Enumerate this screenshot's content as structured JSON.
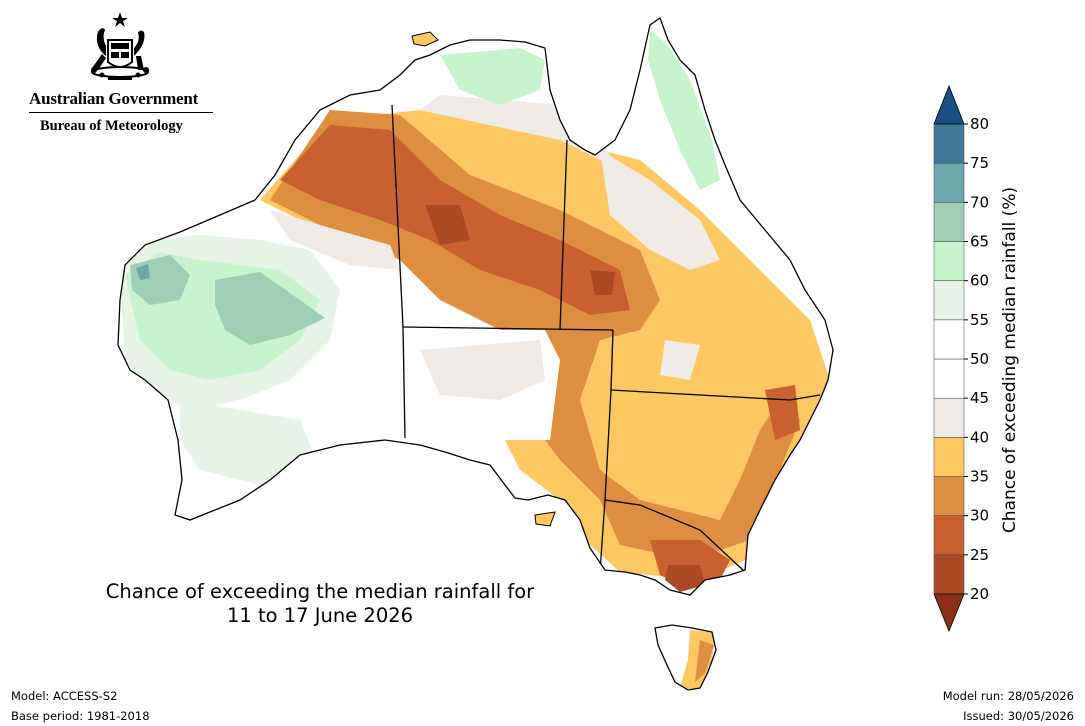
{
  "header": {
    "government": "Australian Government",
    "agency": "Bureau of Meteorology",
    "logo_icon": "coat-of-arms-icon"
  },
  "map": {
    "title_line1": "Chance of exceeding the median rainfall for",
    "title_line2": "11 to 17 June 2026",
    "region": "Australia"
  },
  "colorbar": {
    "label": "Chance of exceeding median rainfall (%)",
    "ticks": [
      "20",
      "25",
      "30",
      "35",
      "40",
      "45",
      "50",
      "55",
      "60",
      "65",
      "70",
      "75",
      "80"
    ],
    "bins": [
      {
        "range": "20-25",
        "color": "#a94a25"
      },
      {
        "range": "25-30",
        "color": "#c8602f"
      },
      {
        "range": "30-35",
        "color": "#de8e41"
      },
      {
        "range": "35-40",
        "color": "#fdc762"
      },
      {
        "range": "40-45",
        "color": "#f0ebe6"
      },
      {
        "range": "45-50",
        "color": "#ffffff"
      },
      {
        "range": "50-55",
        "color": "#ffffff"
      },
      {
        "range": "55-60",
        "color": "#e8f4e8"
      },
      {
        "range": "60-65",
        "color": "#c7f4cc"
      },
      {
        "range": "65-70",
        "color": "#9ecfb6"
      },
      {
        "range": "70-75",
        "color": "#6ea7ac"
      },
      {
        "range": "75-80",
        "color": "#3e769a"
      }
    ],
    "under_color": "#8b3018",
    "over_color": "#1a4e85"
  },
  "footer": {
    "model": "Model: ACCESS-S2",
    "base_period": "Base period: 1981-2018",
    "model_run": "Model run: 28/05/2026",
    "issued": "Issued: 30/05/2026"
  }
}
